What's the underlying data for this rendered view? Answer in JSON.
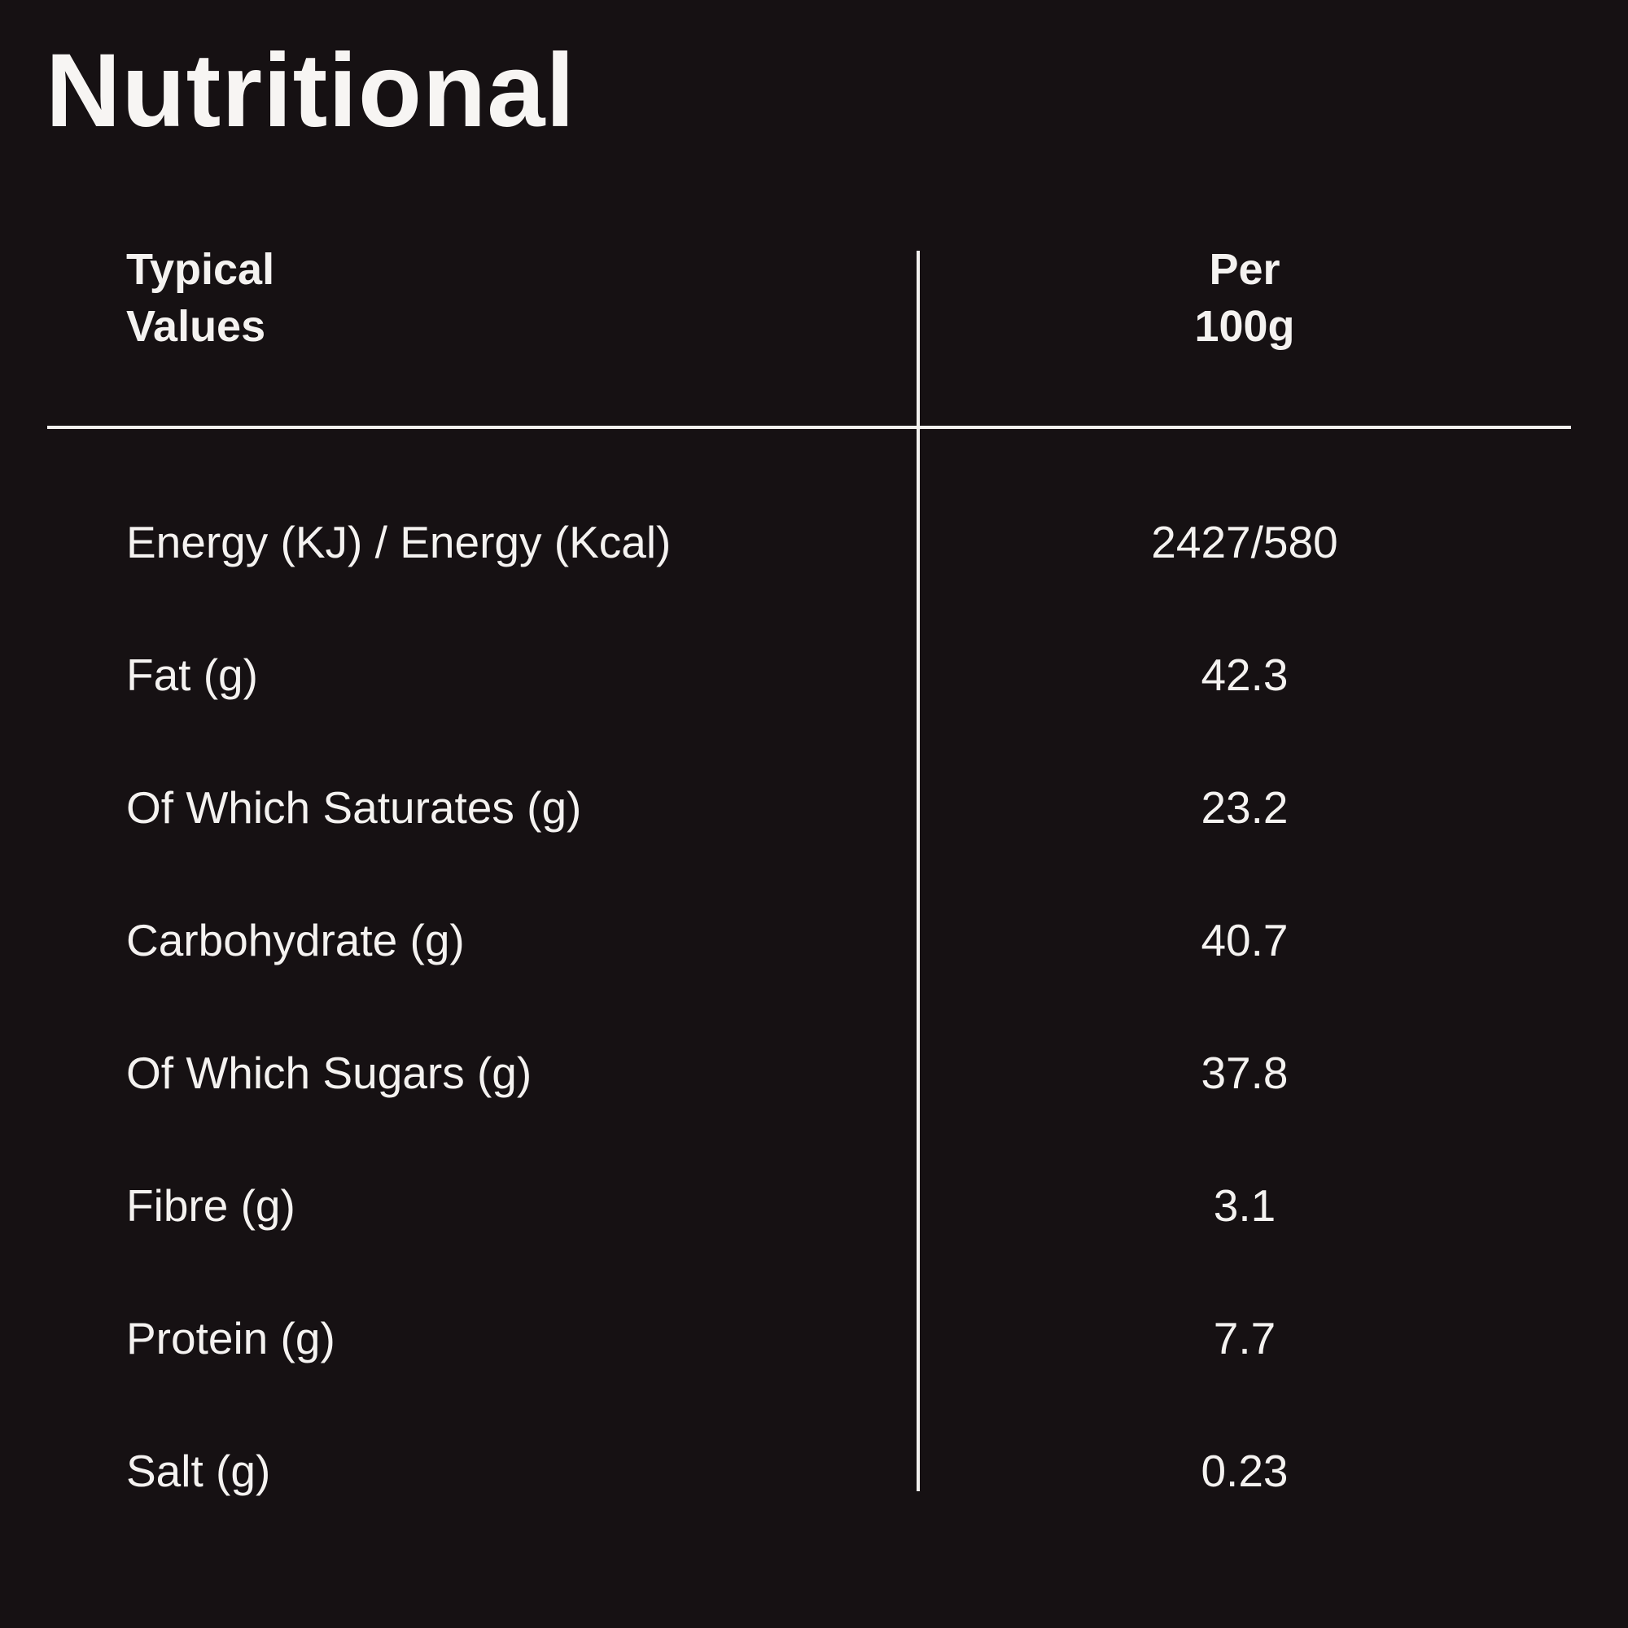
{
  "page": {
    "background_color": "#161113",
    "text_color": "#f4f2f0",
    "rule_color": "#f2f0ee"
  },
  "title": "Nutritional",
  "table": {
    "header": {
      "left_line1": "Typical",
      "left_line2": "Values",
      "right_line1": "Per",
      "right_line2": "100g"
    },
    "rows": [
      {
        "label": "Energy (KJ) / Energy (Kcal)",
        "value": "2427/580"
      },
      {
        "label": "Fat (g)",
        "value": "42.3"
      },
      {
        "label": "Of Which Saturates (g)",
        "value": "23.2"
      },
      {
        "label": "Carbohydrate (g)",
        "value": "40.7"
      },
      {
        "label": "Of Which Sugars (g)",
        "value": "37.8"
      },
      {
        "label": "Fibre (g)",
        "value": "3.1"
      },
      {
        "label": "Protein (g)",
        "value": "7.7"
      },
      {
        "label": "Salt (g)",
        "value": "0.23"
      }
    ]
  }
}
